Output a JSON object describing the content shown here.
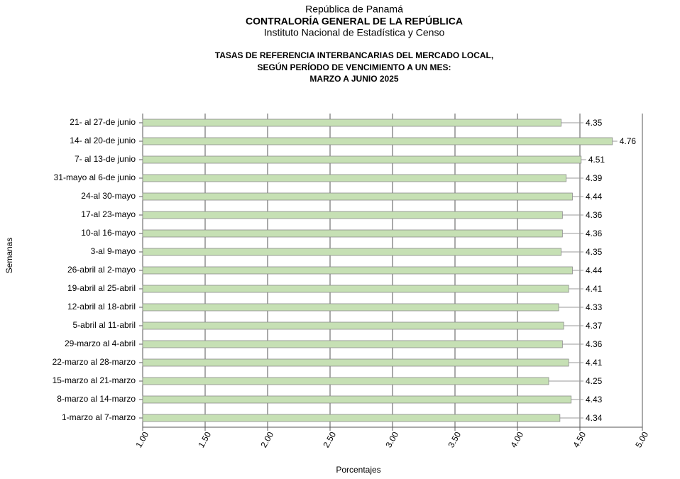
{
  "header": {
    "line1": "República de Panamá",
    "line2": "CONTRALORÍA GENERAL DE LA REPÚBLICA",
    "line3": "Instituto Nacional de Estadística y Censo"
  },
  "chart_data": {
    "type": "bar",
    "orientation": "horizontal",
    "title": [
      "TASAS DE REFERENCIA  INTERBANCARIAS  DEL  MERCADO  LOCAL,",
      "SEGÚN PERÍODO DE VENCIMIENTO  A UN MES:",
      "MARZO  A JUNIO 2025"
    ],
    "y_label": "Semanas",
    "x_label": "Porcentajes",
    "categories": [
      "21- al 27-de junio",
      "14- al 20-de junio",
      "7- al 13-de junio",
      "31-mayo al 6-de junio",
      "24-al 30-mayo",
      "17-al 23-mayo",
      "10-al 16-mayo",
      "3-al 9-mayo",
      "26-abril al 2-mayo",
      "19-abril al 25-abril",
      "12-abril al 18-abril",
      "5-abril al 11-abril",
      "29-marzo al 4-abril",
      "22-marzo al 28-marzo",
      "15-marzo al 21-marzo",
      "8-marzo al 14-marzo",
      "1-marzo al 7-marzo"
    ],
    "values": [
      4.35,
      4.76,
      4.51,
      4.39,
      4.44,
      4.36,
      4.36,
      4.35,
      4.44,
      4.41,
      4.33,
      4.37,
      4.36,
      4.41,
      4.25,
      4.43,
      4.34
    ],
    "color": "#c6e0b4",
    "xlim": [
      1,
      5
    ],
    "xticks": [
      {
        "value": 1,
        "label": "1.00"
      },
      {
        "value": 1.5,
        "label": "1.50"
      },
      {
        "value": 2,
        "label": "2.00"
      },
      {
        "value": 2.5,
        "label": "2.50"
      },
      {
        "value": 3,
        "label": "3.00"
      },
      {
        "value": 3.5,
        "label": "3.50"
      },
      {
        "value": 4,
        "label": "4.00"
      },
      {
        "value": 4.5,
        "label": "4.50"
      },
      {
        "value": 5,
        "label": "5.00"
      }
    ],
    "grid": true
  }
}
